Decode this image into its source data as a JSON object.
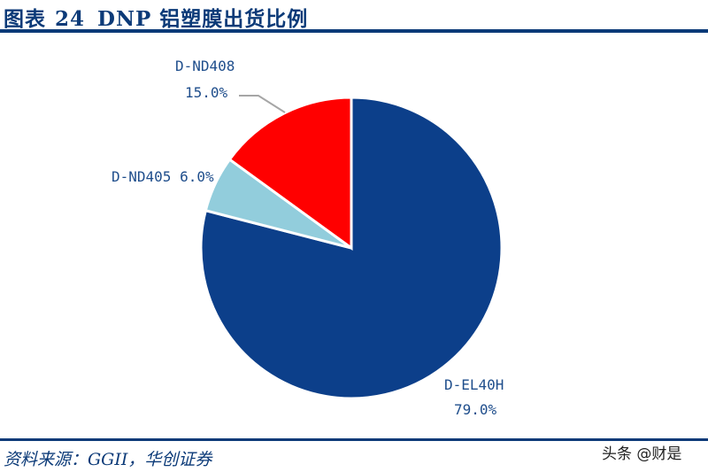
{
  "header": {
    "figure_label": "图表",
    "figure_number": "24",
    "title": "DNP 铝塑膜出货比例"
  },
  "footer": {
    "source": "资料来源：GGII，华创证券",
    "watermark": "头条 @财是"
  },
  "chart_data": {
    "type": "pie",
    "title": "DNP 铝塑膜出货比例",
    "categories": [
      "D-EL40H",
      "D-ND405",
      "D-ND408"
    ],
    "values": [
      79.0,
      6.0,
      15.0
    ],
    "value_labels": [
      "79.0%",
      "6.0%",
      "15.0%"
    ],
    "colors": [
      "#0c3f8a",
      "#92cddc",
      "#ff0000"
    ],
    "start_angle_deg": 0,
    "direction": "clockwise"
  },
  "labels": {
    "d_el40h_name": "D-EL40H",
    "d_el40h_pct": "79.0%",
    "d_nd405": "D-ND405 6.0%",
    "d_nd408_name": "D-ND408",
    "d_nd408_pct": "15.0%"
  }
}
